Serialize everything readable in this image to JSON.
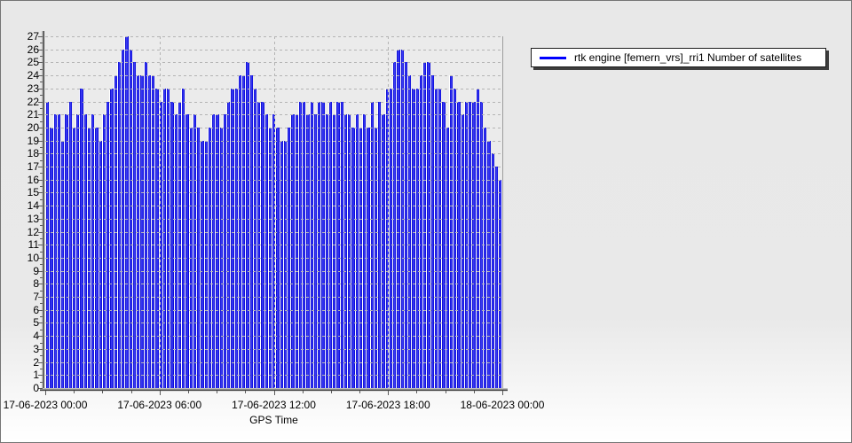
{
  "window": {
    "background_top": "#e8e8e8",
    "background_bottom": "#ffffff",
    "border_color": "#757575",
    "plot_background": "#ebebeb",
    "gridline_color": "#b4b4b4",
    "axis_color": "#8a8a8a"
  },
  "legend": {
    "label": "rtk engine [femern_vrs]_rri1 Number of satellites",
    "line_color": "#0000ff",
    "background": "#ffffff",
    "border_color": "#1c1c1c",
    "shadow_color": "#3e3e3e"
  },
  "chart_data": {
    "type": "bar",
    "title": "",
    "xlabel": "GPS Time",
    "ylabel": "",
    "ylim": [
      0,
      27
    ],
    "y_tick_labels": [
      0,
      1,
      2,
      3,
      4,
      5,
      6,
      7,
      8,
      9,
      10,
      11,
      12,
      13,
      14,
      15,
      16,
      17,
      18,
      19,
      20,
      21,
      22,
      23,
      24,
      25,
      26,
      27
    ],
    "x_tick_labels": [
      "17-06-2023 00:00",
      "17-06-2023 06:00",
      "17-06-2023 12:00",
      "17-06-2023 18:00",
      "18-06-2023 00:00"
    ],
    "x_minor_divisions_per_major": 4,
    "x_start": "17-06-2023 00:00",
    "x_end": "18-06-2023 00:00",
    "grid": "dashed horizontal lines at every integer, dashed vertical lines at 6-hour marks",
    "legend_position": "top-right",
    "bar_color": "#0000e0",
    "series": [
      {
        "name": "rtk engine [femern_vrs]_rri1 Number of satellites",
        "color": "#0000e0",
        "values": [
          22,
          20,
          21,
          21,
          19,
          21,
          22,
          20,
          21,
          23,
          21,
          20,
          21,
          20,
          19,
          21,
          22,
          23,
          24,
          25,
          26,
          27,
          26,
          25,
          24,
          24,
          25,
          24,
          24,
          23,
          22,
          23,
          23,
          22,
          21,
          22,
          23,
          21,
          20,
          21,
          20,
          19,
          19,
          20,
          21,
          21,
          20,
          21,
          22,
          23,
          23,
          24,
          24,
          25,
          24,
          23,
          22,
          22,
          21,
          20,
          21,
          20,
          19,
          19,
          20,
          21,
          21,
          22,
          22,
          21,
          22,
          21,
          22,
          22,
          21,
          22,
          21,
          22,
          22,
          21,
          21,
          20,
          21,
          20,
          21,
          20,
          22,
          20,
          22,
          21,
          23,
          23,
          25,
          26,
          26,
          25,
          24,
          23,
          23,
          24,
          25,
          25,
          24,
          23,
          23,
          22,
          20,
          24,
          23,
          22,
          21,
          22,
          22,
          22,
          23,
          22,
          20,
          19,
          18,
          17,
          16
        ]
      }
    ]
  }
}
